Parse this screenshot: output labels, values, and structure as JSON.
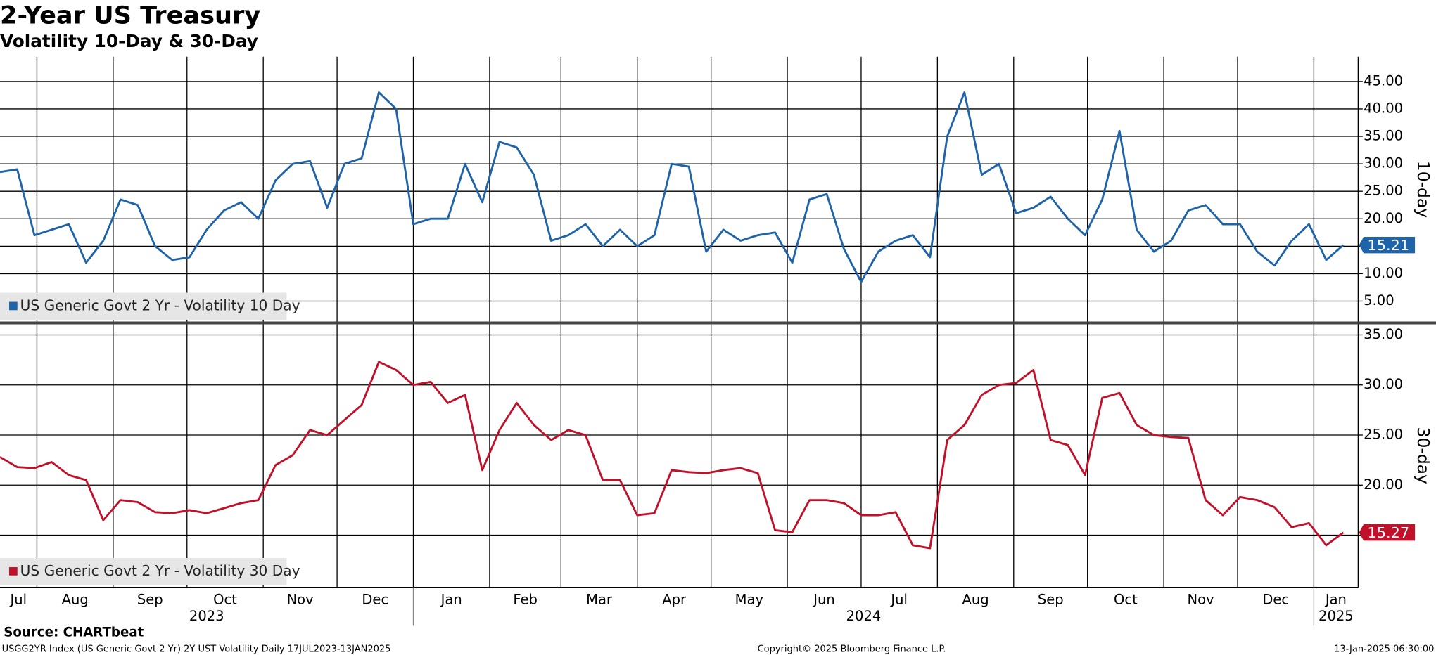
{
  "title": "2-Year US Treasury",
  "subtitle": "Volatility 10-Day & 30-Day",
  "footer": {
    "source": "Source: CHARTbeat",
    "description": "USGG2YR Index (US Generic Govt 2 Yr) 2Y UST Volatility  Daily 17JUL2023-13JAN2025",
    "copyright": "Copyright© 2025 Bloomberg Finance L.P.",
    "timestamp": "13-Jan-2025 06:30:00"
  },
  "chart_data": [
    {
      "type": "line",
      "y_axis_label": "10-day",
      "grid": true,
      "x": [
        "2023-07-17",
        "2023-07-24",
        "2023-07-31",
        "2023-08-07",
        "2023-08-14",
        "2023-08-21",
        "2023-08-28",
        "2023-09-04",
        "2023-09-11",
        "2023-09-18",
        "2023-09-25",
        "2023-10-02",
        "2023-10-09",
        "2023-10-16",
        "2023-10-23",
        "2023-10-30",
        "2023-11-06",
        "2023-11-13",
        "2023-11-20",
        "2023-11-27",
        "2023-12-04",
        "2023-12-11",
        "2023-12-18",
        "2023-12-25",
        "2024-01-01",
        "2024-01-08",
        "2024-01-15",
        "2024-01-22",
        "2024-01-29",
        "2024-02-05",
        "2024-02-12",
        "2024-02-19",
        "2024-02-26",
        "2024-03-04",
        "2024-03-11",
        "2024-03-18",
        "2024-03-25",
        "2024-04-01",
        "2024-04-08",
        "2024-04-15",
        "2024-04-22",
        "2024-04-29",
        "2024-05-06",
        "2024-05-13",
        "2024-05-20",
        "2024-05-27",
        "2024-06-03",
        "2024-06-10",
        "2024-06-17",
        "2024-06-24",
        "2024-07-01",
        "2024-07-08",
        "2024-07-15",
        "2024-07-22",
        "2024-07-29",
        "2024-08-05",
        "2024-08-12",
        "2024-08-19",
        "2024-08-26",
        "2024-09-02",
        "2024-09-09",
        "2024-09-16",
        "2024-09-23",
        "2024-09-30",
        "2024-10-07",
        "2024-10-14",
        "2024-10-21",
        "2024-10-28",
        "2024-11-04",
        "2024-11-11",
        "2024-11-18",
        "2024-11-25",
        "2024-12-02",
        "2024-12-09",
        "2024-12-16",
        "2024-12-23",
        "2024-12-30",
        "2025-01-06",
        "2025-01-13"
      ],
      "xlim": [
        "2023-07-17",
        "2025-01-19"
      ],
      "series": [
        {
          "name": "US Generic Govt 2 Yr - Volatility 10 Day",
          "color": "#1f63a8",
          "values": [
            28.5,
            29,
            17,
            18,
            19,
            12,
            16,
            23.5,
            22.5,
            15,
            12.5,
            13,
            18,
            21.5,
            23,
            20,
            27,
            30,
            30.5,
            22,
            30,
            31,
            43,
            40,
            19,
            20,
            20,
            30,
            23,
            34,
            33,
            28,
            16,
            17,
            19,
            15,
            18,
            15,
            17,
            30,
            29.5,
            14,
            18,
            16,
            17,
            17.5,
            12,
            23.5,
            24.5,
            14.5,
            8.5,
            14,
            16,
            17,
            13,
            35,
            43,
            28,
            30,
            21,
            22,
            24,
            20,
            17,
            23.5,
            36,
            18,
            14,
            16,
            21.5,
            22.5,
            19,
            19,
            14,
            11.5,
            16,
            19,
            12.5,
            15.21
          ]
        }
      ],
      "ylim": [
        1.2,
        49.5
      ],
      "yticks": [
        {
          "value": 5,
          "label": "5.00"
        },
        {
          "value": 10,
          "label": "10.00"
        },
        {
          "value": 15,
          "label": "15.00"
        },
        {
          "value": 20,
          "label": "20.00"
        },
        {
          "value": 25,
          "label": "25.00"
        },
        {
          "value": 30,
          "label": "30.00"
        },
        {
          "value": 35,
          "label": "35.00"
        },
        {
          "value": 40,
          "label": "40.00"
        },
        {
          "value": 45,
          "label": "45.00"
        }
      ]
    },
    {
      "type": "line",
      "y_axis_label": "30-day",
      "grid": true,
      "x": [
        "2023-07-17",
        "2023-07-24",
        "2023-07-31",
        "2023-08-07",
        "2023-08-14",
        "2023-08-21",
        "2023-08-28",
        "2023-09-04",
        "2023-09-11",
        "2023-09-18",
        "2023-09-25",
        "2023-10-02",
        "2023-10-09",
        "2023-10-16",
        "2023-10-23",
        "2023-10-30",
        "2023-11-06",
        "2023-11-13",
        "2023-11-20",
        "2023-11-27",
        "2023-12-04",
        "2023-12-11",
        "2023-12-18",
        "2023-12-25",
        "2024-01-01",
        "2024-01-08",
        "2024-01-15",
        "2024-01-22",
        "2024-01-29",
        "2024-02-05",
        "2024-02-12",
        "2024-02-19",
        "2024-02-26",
        "2024-03-04",
        "2024-03-11",
        "2024-03-18",
        "2024-03-25",
        "2024-04-01",
        "2024-04-08",
        "2024-04-15",
        "2024-04-22",
        "2024-04-29",
        "2024-05-06",
        "2024-05-13",
        "2024-05-20",
        "2024-05-27",
        "2024-06-03",
        "2024-06-10",
        "2024-06-17",
        "2024-06-24",
        "2024-07-01",
        "2024-07-08",
        "2024-07-15",
        "2024-07-22",
        "2024-07-29",
        "2024-08-05",
        "2024-08-12",
        "2024-08-19",
        "2024-08-26",
        "2024-09-02",
        "2024-09-09",
        "2024-09-16",
        "2024-09-23",
        "2024-09-30",
        "2024-10-07",
        "2024-10-14",
        "2024-10-21",
        "2024-10-28",
        "2024-11-04",
        "2024-11-11",
        "2024-11-18",
        "2024-11-25",
        "2024-12-02",
        "2024-12-09",
        "2024-12-16",
        "2024-12-23",
        "2024-12-30",
        "2025-01-06",
        "2025-01-13"
      ],
      "xlim": [
        "2023-07-17",
        "2025-01-19"
      ],
      "xticks": [
        {
          "value": "2023-07-01",
          "label": "Jul"
        },
        {
          "value": "2023-08-01",
          "label": "Aug"
        },
        {
          "value": "2023-09-01",
          "label": "Sep"
        },
        {
          "value": "2023-10-01",
          "label": "Oct"
        },
        {
          "value": "2023-11-01",
          "label": "Nov"
        },
        {
          "value": "2023-12-01",
          "label": "Dec"
        },
        {
          "value": "2024-01-01",
          "label": "Jan"
        },
        {
          "value": "2024-02-01",
          "label": "Feb"
        },
        {
          "value": "2024-03-01",
          "label": "Mar"
        },
        {
          "value": "2024-04-01",
          "label": "Apr"
        },
        {
          "value": "2024-05-01",
          "label": "May"
        },
        {
          "value": "2024-06-01",
          "label": "Jun"
        },
        {
          "value": "2024-07-01",
          "label": "Jul"
        },
        {
          "value": "2024-08-01",
          "label": "Aug"
        },
        {
          "value": "2024-09-01",
          "label": "Sep"
        },
        {
          "value": "2024-10-01",
          "label": "Oct"
        },
        {
          "value": "2024-11-01",
          "label": "Nov"
        },
        {
          "value": "2024-12-01",
          "label": "Dec"
        },
        {
          "value": "2025-01-01",
          "label": "Jan"
        }
      ],
      "year_ticks": [
        {
          "value": "2023-07-01",
          "label": "2023"
        },
        {
          "value": "2024-01-01",
          "label": "2024"
        },
        {
          "value": "2025-01-01",
          "label": "2025"
        }
      ],
      "series": [
        {
          "name": "US Generic Govt 2 Yr - Volatility 30 Day",
          "color": "#c0102a",
          "values": [
            22.8,
            21.8,
            21.7,
            22.3,
            21,
            20.5,
            16.5,
            18.5,
            18.3,
            17.3,
            17.2,
            17.5,
            17.2,
            17.7,
            18.2,
            18.5,
            22,
            23,
            25.5,
            25,
            26.5,
            28,
            32.3,
            31.5,
            30,
            30.3,
            28.2,
            29,
            21.5,
            25.5,
            28.2,
            26,
            24.5,
            25.5,
            25,
            20.5,
            20.5,
            17,
            17.2,
            21.5,
            21.3,
            21.2,
            21.5,
            21.7,
            21.2,
            15.5,
            15.3,
            18.5,
            18.5,
            18.2,
            17,
            17,
            17.3,
            14,
            13.7,
            24.5,
            26,
            29,
            30,
            30.2,
            31.5,
            24.5,
            24,
            21,
            28.7,
            29.2,
            26,
            25,
            24.8,
            24.7,
            18.5,
            17,
            18.8,
            18.5,
            17.8,
            15.8,
            16.2,
            14,
            15.27
          ]
        }
      ],
      "ylim": [
        9.8,
        36.1
      ],
      "yticks": [
        {
          "value": 15,
          "label": "15.00"
        },
        {
          "value": 20,
          "label": "20.00"
        },
        {
          "value": 25,
          "label": "25.00"
        },
        {
          "value": 30,
          "label": "30.00"
        },
        {
          "value": 35,
          "label": "35.00"
        }
      ]
    }
  ]
}
